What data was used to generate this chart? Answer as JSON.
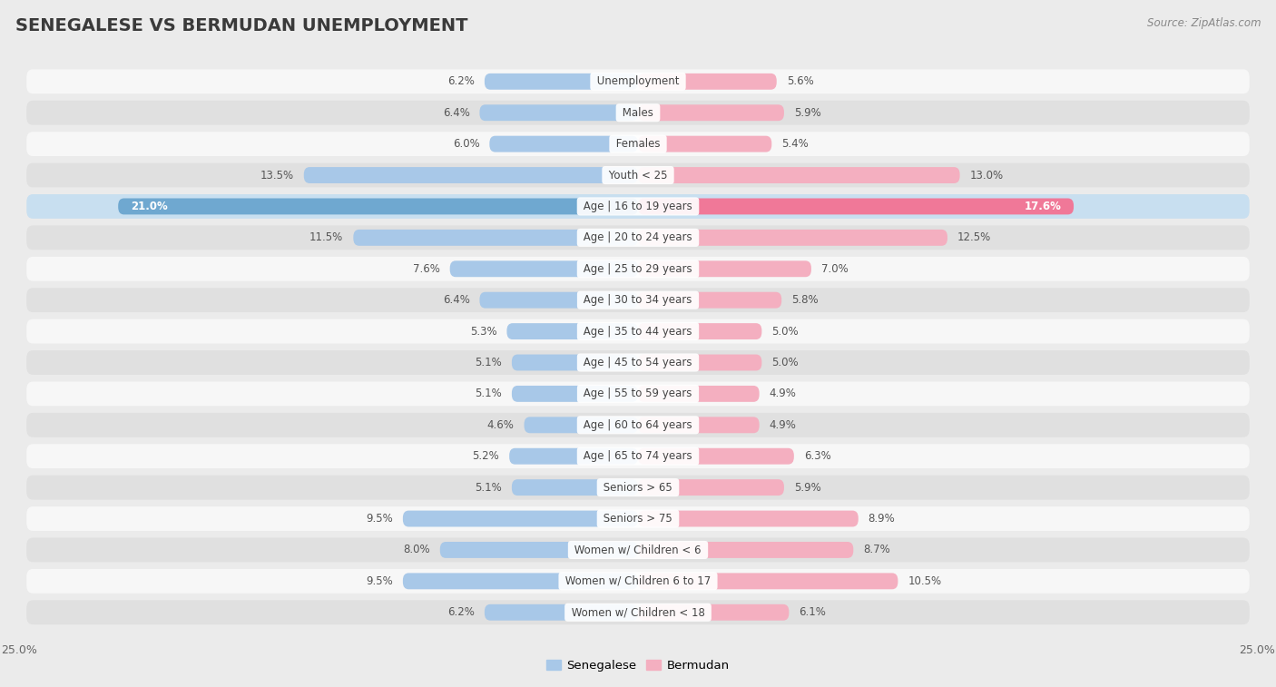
{
  "title": "SENEGALESE VS BERMUDAN UNEMPLOYMENT",
  "source": "Source: ZipAtlas.com",
  "categories": [
    "Unemployment",
    "Males",
    "Females",
    "Youth < 25",
    "Age | 16 to 19 years",
    "Age | 20 to 24 years",
    "Age | 25 to 29 years",
    "Age | 30 to 34 years",
    "Age | 35 to 44 years",
    "Age | 45 to 54 years",
    "Age | 55 to 59 years",
    "Age | 60 to 64 years",
    "Age | 65 to 74 years",
    "Seniors > 65",
    "Seniors > 75",
    "Women w/ Children < 6",
    "Women w/ Children 6 to 17",
    "Women w/ Children < 18"
  ],
  "senegalese": [
    6.2,
    6.4,
    6.0,
    13.5,
    21.0,
    11.5,
    7.6,
    6.4,
    5.3,
    5.1,
    5.1,
    4.6,
    5.2,
    5.1,
    9.5,
    8.0,
    9.5,
    6.2
  ],
  "bermudan": [
    5.6,
    5.9,
    5.4,
    13.0,
    17.6,
    12.5,
    7.0,
    5.8,
    5.0,
    5.0,
    4.9,
    4.9,
    6.3,
    5.9,
    8.9,
    8.7,
    10.5,
    6.1
  ],
  "color_senegalese": "#a8c8e8",
  "color_bermudan": "#f4afc0",
  "color_senegalese_highlight": "#6fa8d0",
  "color_bermudan_highlight": "#f07898",
  "axis_max": 25.0,
  "bg_color": "#ebebeb",
  "bar_row_color": "#f7f7f7",
  "bar_row_alt_color": "#e0e0e0",
  "highlight_row_color": "#c8dff0",
  "label_fontsize": 8.5,
  "value_fontsize": 8.5,
  "title_fontsize": 14,
  "source_fontsize": 8.5,
  "legend_fontsize": 9.5
}
